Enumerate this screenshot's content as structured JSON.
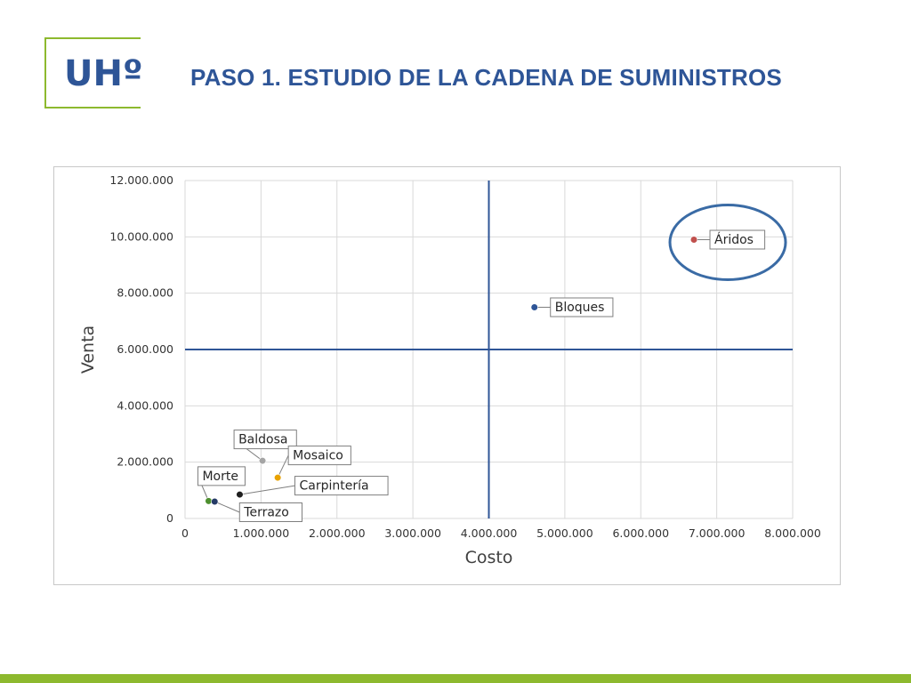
{
  "header": {
    "logo_text": "UHº",
    "title": "PASO 1. ESTUDIO DE LA CADENA DE SUMINISTROS"
  },
  "colors": {
    "brand_green": "#8DB92E",
    "title_blue": "#2E5597",
    "quadrant_line": "#2F5597",
    "highlight_circle": "#3A6BA5",
    "footer_green": "#8DB92E"
  },
  "chart_data": {
    "type": "scatter",
    "xlabel": "Costo",
    "ylabel": "Venta",
    "xlim": [
      0,
      8000000
    ],
    "ylim": [
      0,
      12000000
    ],
    "x_ticks": [
      0,
      1000000,
      2000000,
      3000000,
      4000000,
      5000000,
      6000000,
      7000000,
      8000000
    ],
    "y_ticks": [
      0,
      2000000,
      4000000,
      6000000,
      8000000,
      10000000,
      12000000
    ],
    "x_tick_labels": [
      "0",
      "1.000.000",
      "2.000.000",
      "3.000.000",
      "4.000.000",
      "5.000.000",
      "6.000.000",
      "7.000.000",
      "8.000.000"
    ],
    "y_tick_labels": [
      "0",
      "2.000.000",
      "4.000.000",
      "6.000.000",
      "8.000.000",
      "10.000.000",
      "12.000.000"
    ],
    "grid": true,
    "quadrant_lines": {
      "x": 4000000,
      "y": 6000000
    },
    "highlight": "Áridos",
    "points": [
      {
        "label": "Áridos",
        "x": 6700000,
        "y": 9900000,
        "color": "#C0504D"
      },
      {
        "label": "Bloques",
        "x": 4600000,
        "y": 7500000,
        "color": "#2E5597"
      },
      {
        "label": "Baldosa",
        "x": 1020000,
        "y": 2050000,
        "color": "#A5A5A5"
      },
      {
        "label": "Mosaico",
        "x": 1220000,
        "y": 1450000,
        "color": "#E8A200"
      },
      {
        "label": "Carpintería",
        "x": 720000,
        "y": 850000,
        "color": "#1f1f1f"
      },
      {
        "label": "Morte",
        "x": 310000,
        "y": 620000,
        "color": "#4E8F2F"
      },
      {
        "label": "Terrazo",
        "x": 390000,
        "y": 600000,
        "color": "#243A66"
      }
    ]
  }
}
